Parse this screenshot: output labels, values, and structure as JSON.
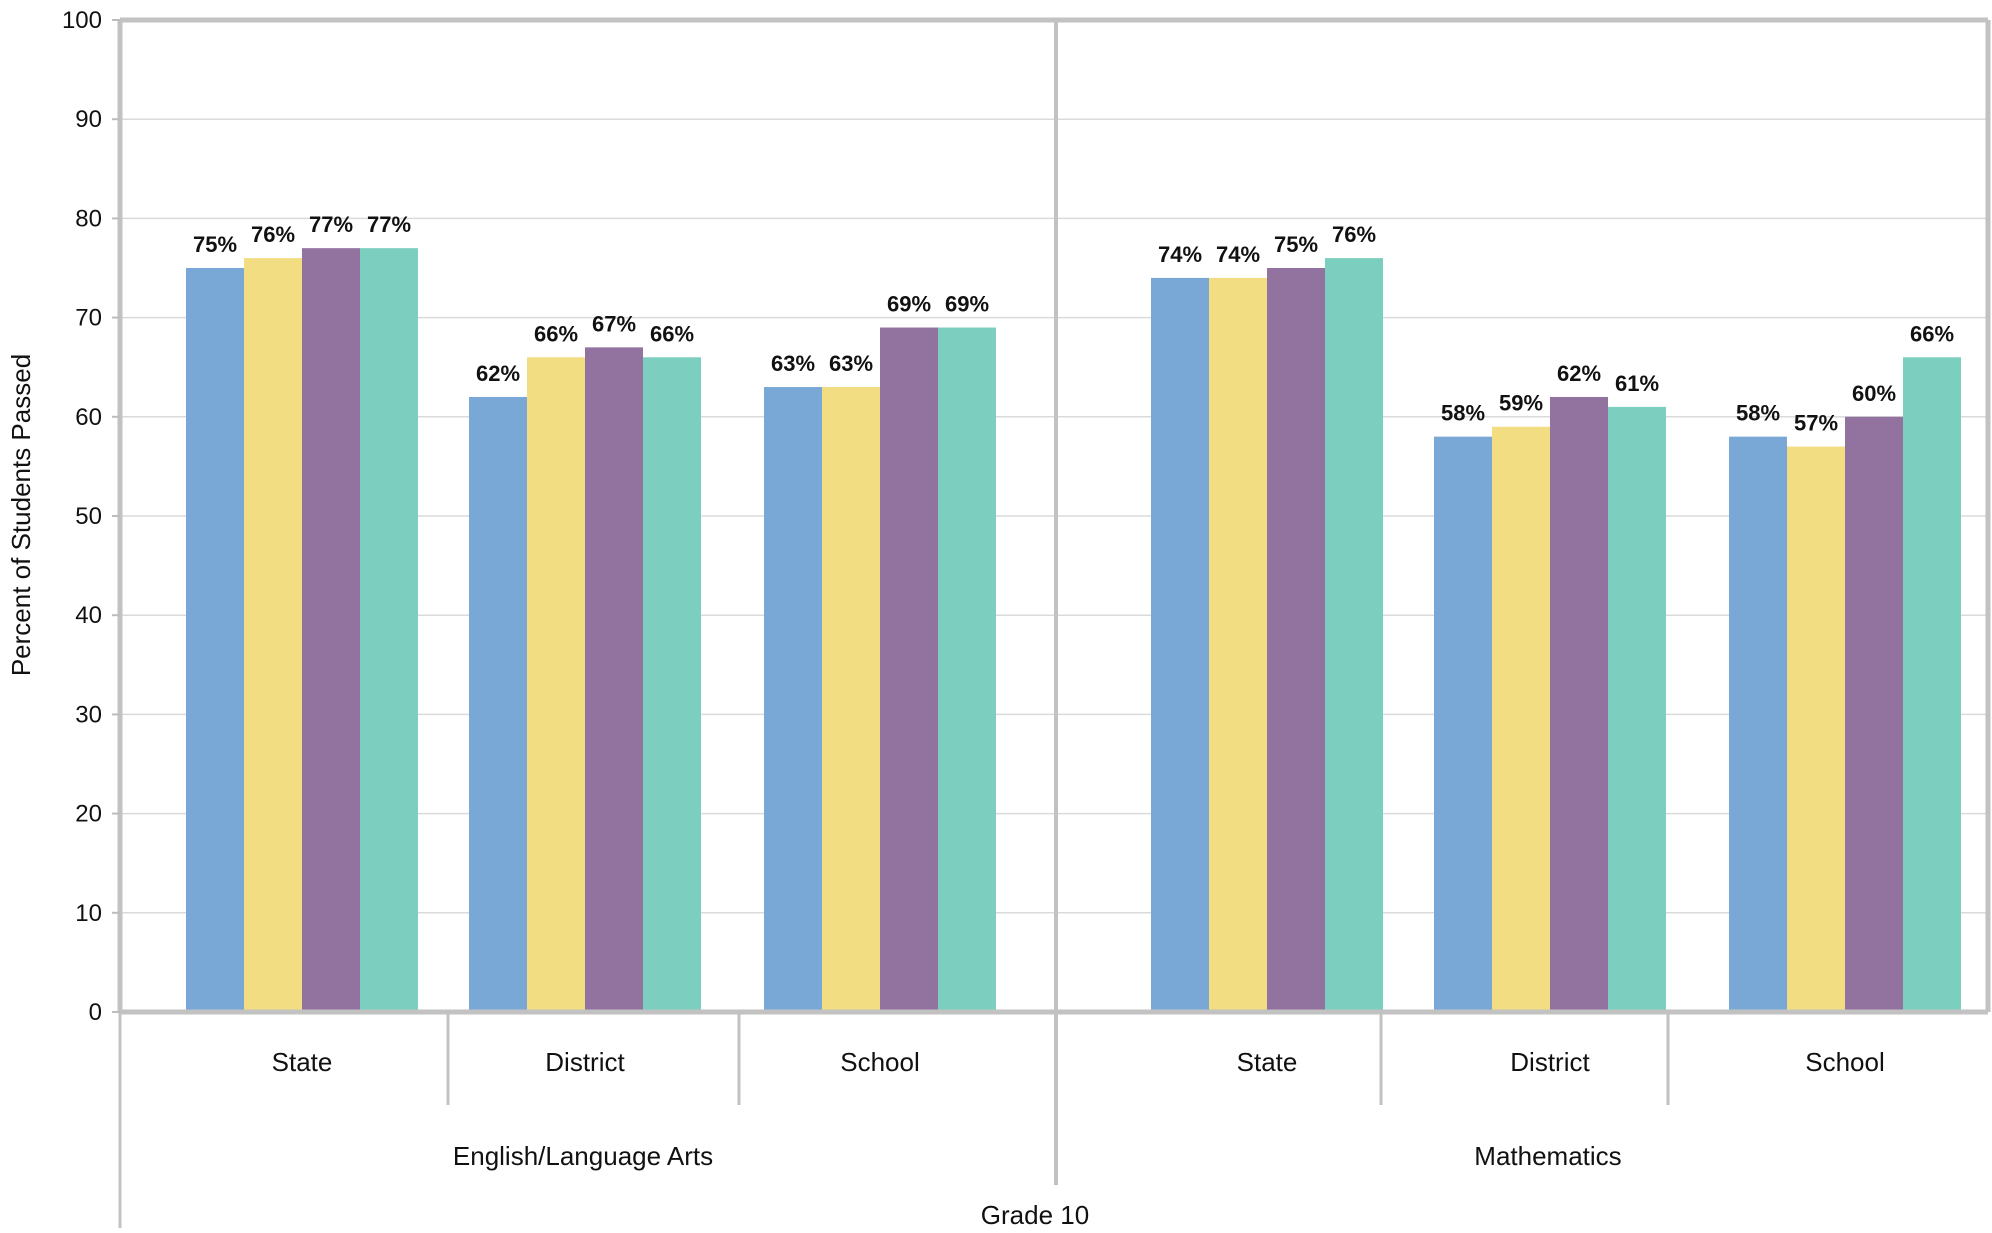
{
  "chart_data": {
    "type": "bar",
    "title": "",
    "ylabel": "Percent of Students Passed",
    "xlabel": "Grade 10",
    "ylim": [
      0,
      100
    ],
    "yticks": [
      0,
      10,
      20,
      30,
      40,
      50,
      60,
      70,
      80,
      90,
      100
    ],
    "grid": true,
    "legend": "none",
    "colors": [
      "#7aa8d6",
      "#f2dd82",
      "#9273a0",
      "#7ccfbe"
    ],
    "groups": [
      {
        "label": "English/Language Arts",
        "categories": [
          {
            "label": "State",
            "values": [
              75,
              76,
              77,
              77
            ],
            "labels": [
              "75%",
              "76%",
              "77%",
              "77%"
            ]
          },
          {
            "label": "District",
            "values": [
              62,
              66,
              67,
              66
            ],
            "labels": [
              "62%",
              "66%",
              "67%",
              "66%"
            ]
          },
          {
            "label": "School",
            "values": [
              63,
              63,
              69,
              69
            ],
            "labels": [
              "63%",
              "63%",
              "69%",
              "69%"
            ]
          }
        ]
      },
      {
        "label": "Mathematics",
        "categories": [
          {
            "label": "State",
            "values": [
              74,
              74,
              75,
              76
            ],
            "labels": [
              "74%",
              "74%",
              "75%",
              "76%"
            ]
          },
          {
            "label": "District",
            "values": [
              58,
              59,
              62,
              61
            ],
            "labels": [
              "58%",
              "59%",
              "62%",
              "61%"
            ]
          },
          {
            "label": "School",
            "values": [
              58,
              57,
              60,
              66
            ],
            "labels": [
              "58%",
              "57%",
              "60%",
              "66%"
            ]
          }
        ]
      }
    ]
  }
}
